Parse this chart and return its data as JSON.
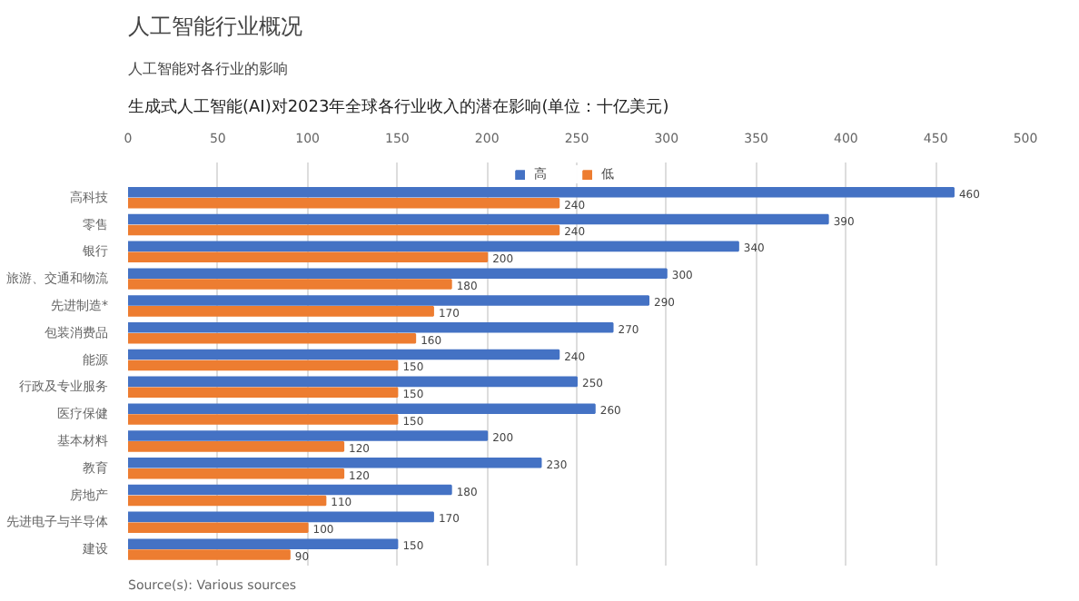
{
  "chart_data": {
    "type": "bar",
    "orientation": "horizontal",
    "title": "人工智能行业概况",
    "subtitle": "人工智能对各行业的影响",
    "categories": [
      "高科技",
      "零售",
      "银行",
      "旅游、交通和物流",
      "先进制造*",
      "包装消费品",
      "能源",
      "行政及专业服务",
      "医疗保健",
      "基本材料",
      "教育",
      "房地产",
      "先进电子与半导体",
      "建设"
    ],
    "series": [
      {
        "name": "高",
        "color": "#4472c4",
        "values": [
          460,
          390,
          340,
          300,
          290,
          270,
          240,
          250,
          260,
          200,
          230,
          180,
          170,
          150
        ]
      },
      {
        "name": "低",
        "color": "#ed7d31",
        "values": [
          240,
          240,
          200,
          180,
          170,
          160,
          150,
          150,
          150,
          120,
          120,
          110,
          100,
          90
        ]
      }
    ],
    "xlim": [
      0,
      500
    ],
    "xticks": [
      0,
      50,
      100,
      150,
      200,
      250,
      300,
      350,
      400,
      450,
      500
    ],
    "grid": "x",
    "legend": "top",
    "data_labels": true,
    "annotations": [
      "生成式人工智能(AI)对2023年全球各行业收入的潜在影响(单位：十亿美元)",
      "Source(s): Various sources"
    ]
  }
}
